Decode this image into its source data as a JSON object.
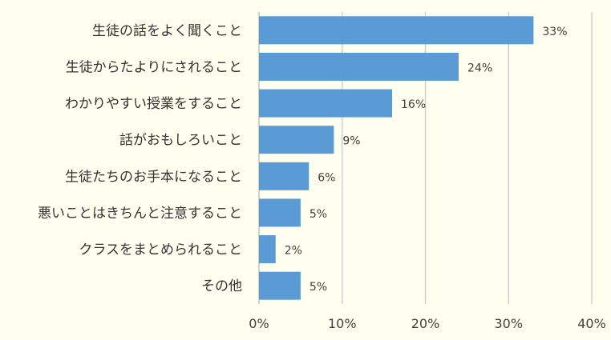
{
  "chart_data": {
    "type": "bar",
    "orientation": "horizontal",
    "categories": [
      "生徒の話をよく聞くこと",
      "生徒からたよりにされること",
      "わかりやすい授業をすること",
      "話がおもしろいこと",
      "生徒たちのお手本になること",
      "悪いことはきちんと注意すること",
      "クラスをまとめられること",
      "その他"
    ],
    "values": [
      33,
      24,
      16,
      9,
      6,
      5,
      2,
      5
    ],
    "data_labels": [
      "33%",
      "24%",
      "16%",
      "9%",
      "6%",
      "5%",
      "2%",
      "5%"
    ],
    "xlim": [
      0,
      40
    ],
    "xticks": [
      0,
      10,
      20,
      30,
      40
    ],
    "xtick_labels": [
      "0%",
      "10%",
      "20%",
      "30%",
      "40%"
    ],
    "grid": true,
    "legend": "none",
    "bar_color": "#5b9bd5",
    "background_color": "#fffff0"
  }
}
